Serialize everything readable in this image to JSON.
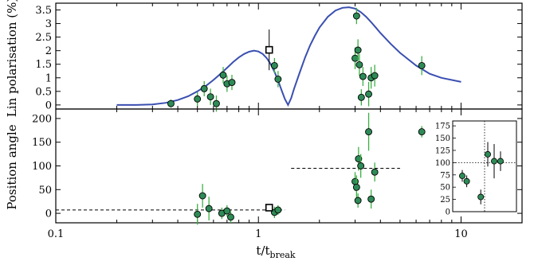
{
  "chart_data": [
    {
      "type": "scatter",
      "panel": "top",
      "ylabel": "Lin polarisation (%)",
      "xscale": "log",
      "xlim": [
        0.1,
        20
      ],
      "ylim": [
        -0.15,
        3.75
      ],
      "x_ticks": [
        0.1,
        1,
        10
      ],
      "x_tick_labels": [
        "0.1",
        "1",
        "10"
      ],
      "y_ticks": [
        0,
        0.5,
        1,
        1.5,
        2,
        2.5,
        3,
        3.5
      ],
      "y_tick_labels": [
        "0",
        "0.5",
        "1",
        "1.5",
        "2",
        "2.5",
        "3",
        "3.5"
      ],
      "colors": {
        "points": "#2e8b57",
        "errorbars": "#3cb043",
        "model": "#3a4fb0",
        "square": "#000000"
      },
      "series": [
        {
          "kind": "points",
          "points": [
            {
              "x": 0.37,
              "y": 0.05,
              "e": 0.15
            },
            {
              "x": 0.5,
              "y": 0.22,
              "e": 0.25
            },
            {
              "x": 0.54,
              "y": 0.6,
              "e": 0.28
            },
            {
              "x": 0.58,
              "y": 0.3,
              "e": 0.3
            },
            {
              "x": 0.62,
              "y": 0.05,
              "e": 0.3
            },
            {
              "x": 0.67,
              "y": 1.1,
              "e": 0.3
            },
            {
              "x": 0.7,
              "y": 0.78,
              "e": 0.3
            },
            {
              "x": 0.74,
              "y": 0.83,
              "e": 0.28
            },
            {
              "x": 1.2,
              "y": 1.45,
              "e": 0.28
            },
            {
              "x": 1.25,
              "y": 0.95,
              "e": 0.3
            },
            {
              "x": 3.0,
              "y": 1.72,
              "e": 0.4
            },
            {
              "x": 3.05,
              "y": 3.28,
              "e": 0.3
            },
            {
              "x": 3.1,
              "y": 2.02,
              "e": 0.4
            },
            {
              "x": 3.15,
              "y": 1.48,
              "e": 0.4
            },
            {
              "x": 3.22,
              "y": 0.28,
              "e": 0.3
            },
            {
              "x": 3.28,
              "y": 1.05,
              "e": 0.35
            },
            {
              "x": 3.5,
              "y": 0.4,
              "e": 0.45
            },
            {
              "x": 3.6,
              "y": 1.0,
              "e": 0.4
            },
            {
              "x": 3.75,
              "y": 1.08,
              "e": 0.4
            },
            {
              "x": 6.4,
              "y": 1.45,
              "e": 0.35
            }
          ]
        },
        {
          "kind": "open-square",
          "points": [
            {
              "x": 1.13,
              "y": 2.03,
              "e": 0.75
            }
          ]
        },
        {
          "kind": "model-curve",
          "x": [
            0.2,
            0.25,
            0.3,
            0.35,
            0.4,
            0.45,
            0.5,
            0.55,
            0.6,
            0.65,
            0.7,
            0.75,
            0.8,
            0.85,
            0.9,
            0.95,
            1.0,
            1.05,
            1.1,
            1.15,
            1.2,
            1.25,
            1.3,
            1.35,
            1.4,
            1.45,
            1.5,
            1.6,
            1.7,
            1.8,
            1.9,
            2.0,
            2.2,
            2.4,
            2.6,
            2.8,
            3.0,
            3.2,
            3.4,
            3.6,
            3.8,
            4.0,
            4.5,
            5.0,
            6.0,
            7.0,
            8.0,
            10.0
          ],
          "y": [
            0.0,
            0.0,
            0.02,
            0.08,
            0.18,
            0.32,
            0.5,
            0.7,
            0.92,
            1.15,
            1.37,
            1.58,
            1.75,
            1.88,
            1.96,
            2.0,
            1.97,
            1.88,
            1.72,
            1.5,
            1.22,
            0.9,
            0.55,
            0.22,
            0.0,
            0.25,
            0.6,
            1.2,
            1.75,
            2.2,
            2.55,
            2.85,
            3.25,
            3.48,
            3.58,
            3.6,
            3.55,
            3.42,
            3.25,
            3.05,
            2.85,
            2.65,
            2.25,
            1.92,
            1.45,
            1.15,
            1.0,
            0.85
          ]
        }
      ]
    },
    {
      "type": "scatter",
      "panel": "bottom",
      "xlabel": "t/t",
      "xlabel_sub": "break",
      "ylabel": "Position angle",
      "xscale": "log",
      "xlim": [
        0.1,
        20
      ],
      "ylim": [
        -20,
        220
      ],
      "x_ticks": [
        0.1,
        1,
        10
      ],
      "x_tick_labels": [
        "0.1",
        "1",
        "10"
      ],
      "y_ticks": [
        0,
        50,
        100,
        150,
        200
      ],
      "y_tick_labels": [
        "0",
        "50",
        "100",
        "150",
        "200"
      ],
      "dashed_lines": [
        {
          "x0": 0.1,
          "x1": 1.35,
          "y": 7
        },
        {
          "x0": 1.45,
          "x1": 5.0,
          "y": 95
        }
      ],
      "series": [
        {
          "kind": "points",
          "points": [
            {
              "x": 0.5,
              "y": -2,
              "e": 22
            },
            {
              "x": 0.53,
              "y": 37,
              "e": 25
            },
            {
              "x": 0.57,
              "y": 10,
              "e": 25
            },
            {
              "x": 0.66,
              "y": 0,
              "e": 12
            },
            {
              "x": 0.7,
              "y": 5,
              "e": 12
            },
            {
              "x": 0.73,
              "y": -8,
              "e": 12
            },
            {
              "x": 1.2,
              "y": 2,
              "e": 12
            },
            {
              "x": 1.25,
              "y": 7,
              "e": 10
            },
            {
              "x": 3.0,
              "y": 67,
              "e": 20
            },
            {
              "x": 3.05,
              "y": 55,
              "e": 25
            },
            {
              "x": 3.1,
              "y": 27,
              "e": 15
            },
            {
              "x": 3.12,
              "y": 115,
              "e": 25
            },
            {
              "x": 3.2,
              "y": 100,
              "e": 25
            },
            {
              "x": 3.5,
              "y": 172,
              "e": 40
            },
            {
              "x": 3.6,
              "y": 30,
              "e": 20
            },
            {
              "x": 3.75,
              "y": 87,
              "e": 20
            },
            {
              "x": 6.4,
              "y": 172,
              "e": 12
            }
          ]
        },
        {
          "kind": "open-square",
          "points": [
            {
              "x": 1.13,
              "y": 12,
              "e": 0
            }
          ]
        }
      ]
    },
    {
      "type": "scatter",
      "panel": "inset",
      "ylim": [
        0,
        185
      ],
      "y_ticks": [
        0,
        25,
        50,
        75,
        100,
        125,
        150,
        175
      ],
      "y_tick_labels": [
        "0",
        "25",
        "50",
        "75",
        "100",
        "125",
        "150",
        "175"
      ],
      "reference_lines": {
        "y": 100,
        "x": 0.5
      },
      "points": [
        {
          "x": 0.15,
          "y": 73,
          "e": 12
        },
        {
          "x": 0.22,
          "y": 62,
          "e": 12
        },
        {
          "x": 0.44,
          "y": 30,
          "e": 15
        },
        {
          "x": 0.55,
          "y": 117,
          "e": 25
        },
        {
          "x": 0.65,
          "y": 103,
          "e": 35
        },
        {
          "x": 0.75,
          "y": 103,
          "e": 20
        }
      ]
    }
  ]
}
